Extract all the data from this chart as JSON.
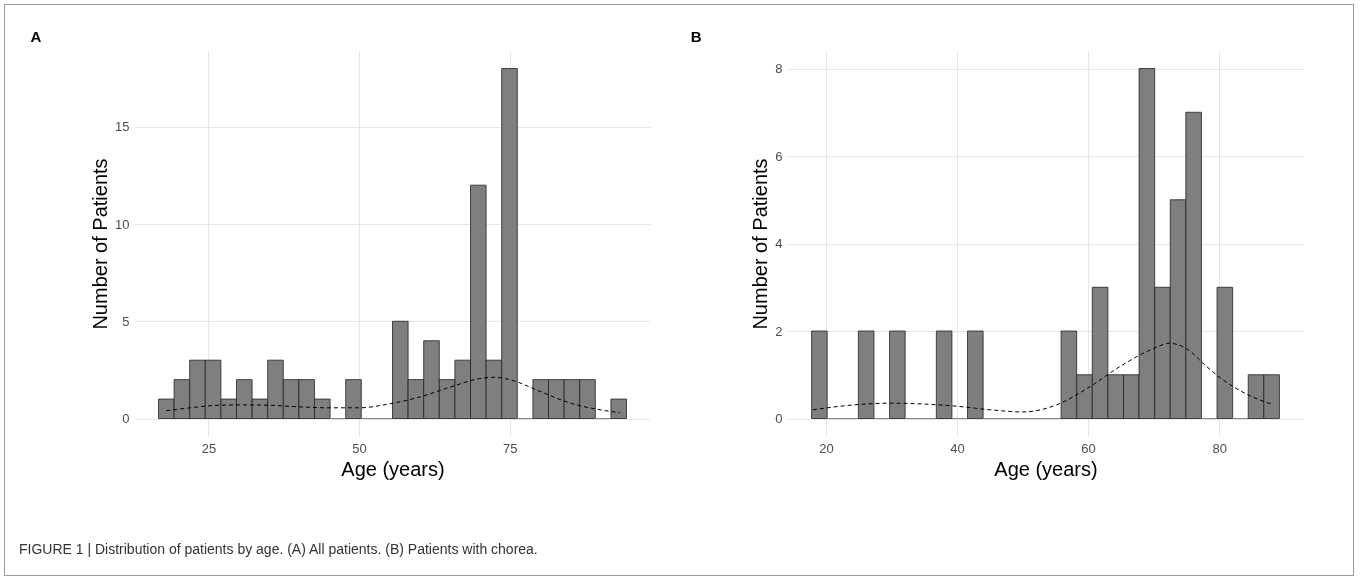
{
  "chart_data": [
    {
      "type": "histogram",
      "title": "A",
      "xlabel": "Age (years)",
      "ylabel": "Number of Patients",
      "xlim": [
        12.8,
        98.3
      ],
      "xticks": [
        25,
        50,
        75
      ],
      "ylim": [
        -0.9,
        18.9
      ],
      "yticks": [
        0,
        5,
        10,
        15
      ],
      "grid": true,
      "bins": [
        16.7,
        19.29,
        21.88,
        24.47,
        27.06,
        29.65,
        32.24,
        34.83,
        37.42,
        40.01,
        42.6,
        45.19,
        47.78,
        50.37,
        52.96,
        55.55,
        58.14,
        60.73,
        63.32,
        65.91,
        68.5,
        71.09,
        73.68,
        76.27,
        78.86,
        81.45,
        84.04,
        86.63,
        89.22,
        91.81,
        94.4
      ],
      "series": [
        {
          "color": "#7f7f7f",
          "values": [
            1,
            2,
            3,
            3,
            1,
            2,
            1,
            3,
            2,
            2,
            1,
            0,
            2,
            0,
            0,
            5,
            2,
            4,
            2,
            3,
            12,
            3,
            18,
            0,
            2,
            2,
            2,
            2,
            0,
            1
          ]
        },
        {
          "type": "line",
          "color": "#000000",
          "line_style": "dashed",
          "x": [
            18,
            22,
            25,
            30,
            35,
            40,
            45,
            50,
            55,
            60,
            65,
            70,
            72.4,
            75,
            80,
            85,
            90,
            93.3
          ],
          "values": [
            0.4,
            0.55,
            0.65,
            0.7,
            0.68,
            0.6,
            0.55,
            0.55,
            0.75,
            1.1,
            1.6,
            2.05,
            2.12,
            2.0,
            1.4,
            0.8,
            0.45,
            0.3
          ]
        }
      ],
      "annotations": [
        "FIGURE 1 | Distribution of patients by age. (A) All patients. (B) Patients with chorea."
      ]
    },
    {
      "type": "histogram",
      "title": "B",
      "xlabel": "Age (years)",
      "ylabel": "Number of Patients",
      "xlim": [
        14.2,
        92.8
      ],
      "xticks": [
        20,
        40,
        60,
        80
      ],
      "ylim": [
        -0.4,
        8.4
      ],
      "yticks": [
        0,
        2,
        4,
        6,
        8
      ],
      "grid": true,
      "bins": [
        17.8,
        20.18,
        22.56,
        24.94,
        27.32,
        29.7,
        32.08,
        34.46,
        36.84,
        39.22,
        41.6,
        43.98,
        46.36,
        48.74,
        51.12,
        53.5,
        55.88,
        58.26,
        60.64,
        63.02,
        65.4,
        67.78,
        70.16,
        72.54,
        74.92,
        77.3,
        79.68,
        82.06,
        84.44,
        86.82,
        89.2
      ],
      "series": [
        {
          "color": "#7f7f7f",
          "values": [
            2,
            0,
            0,
            2,
            0,
            2,
            0,
            0,
            2,
            0,
            2,
            0,
            0,
            0,
            0,
            0,
            2,
            1,
            3,
            1,
            1,
            8,
            3,
            5,
            7,
            0,
            3,
            0,
            1,
            1
          ]
        },
        {
          "type": "line",
          "color": "#000000",
          "line_style": "dashed",
          "x": [
            18,
            25,
            30,
            35,
            40,
            45,
            50,
            55,
            60,
            65,
            70,
            72.4,
            75,
            78,
            80,
            85,
            88
          ],
          "values": [
            0.2,
            0.32,
            0.35,
            0.33,
            0.28,
            0.2,
            0.15,
            0.3,
            0.7,
            1.2,
            1.6,
            1.72,
            1.6,
            1.2,
            0.95,
            0.5,
            0.33
          ]
        }
      ]
    }
  ]
}
